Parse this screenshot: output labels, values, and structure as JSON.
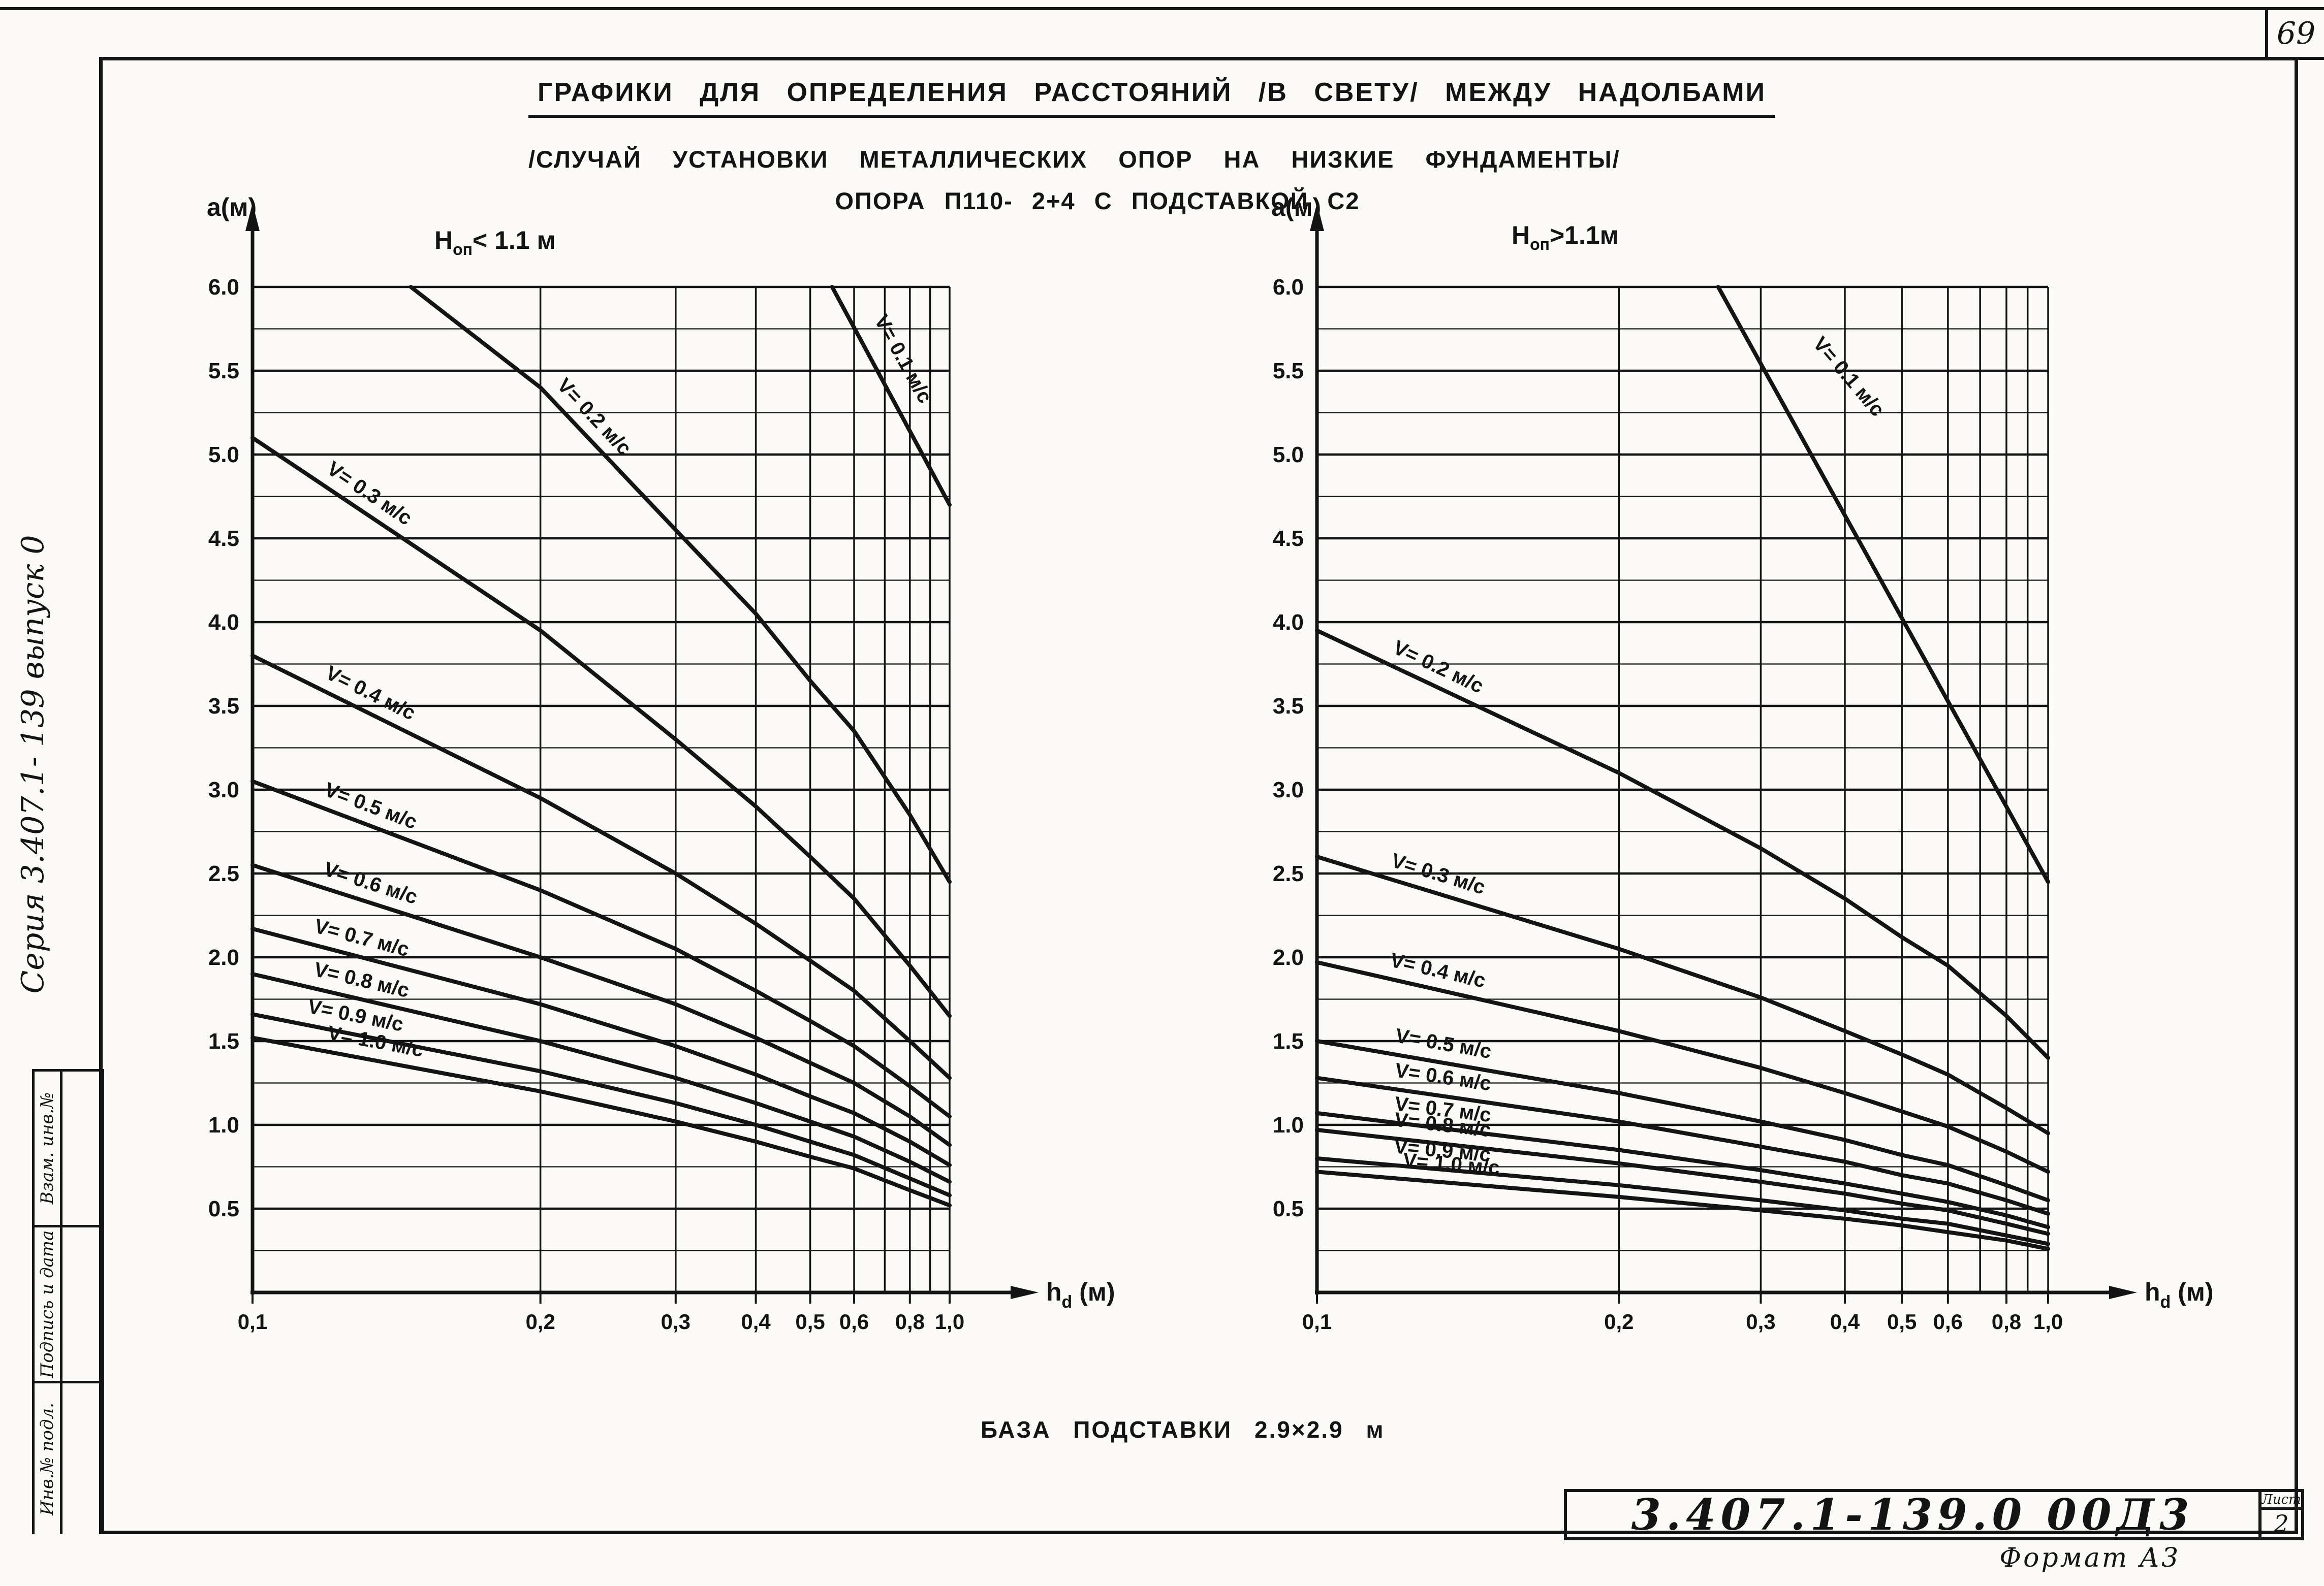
{
  "page": {
    "page_number": "69",
    "side_series_label": "Серия 3.407.1- 139 выпуск 0",
    "margin_boxes": [
      "Взам. инв.№",
      "Подпись и дата",
      "Инв.№ подл."
    ],
    "format_note": "Формат А3"
  },
  "title": {
    "line1": "ГРАФИКИ ДЛЯ ОПРЕДЕЛЕНИЯ РАССТОЯНИЙ /В СВЕТУ/ МЕЖДУ НАДОЛБАМИ",
    "line2": "/СЛУЧАЙ УСТАНОВКИ МЕТАЛЛИЧЕСКИХ ОПОР НА НИЗКИЕ ФУНДАМЕНТЫ/",
    "line3": "ОПОРА П110- 2+4 С ПОДСТАВКОЙ С2"
  },
  "note": "БАЗА ПОДСТАВКИ 2.9×2.9 м",
  "title_block": {
    "doc_number": "3.407.1-139.0  00Д3",
    "sheet_label": "Лист",
    "sheet_number": "2"
  },
  "chart_data": [
    {
      "type": "line",
      "title_parts": {
        "pre": "H",
        "sub": "оп",
        "post": "< 1.1 м"
      },
      "ylabel": "a(м)",
      "xlabel_parts": {
        "pre": "h",
        "sub": "d",
        "post": " (м)"
      },
      "xlim": [
        0.1,
        1.0
      ],
      "ylim": [
        0,
        6.0
      ],
      "x_scale": "hand-drawn compressed log",
      "grid": {
        "y_minor_step": 0.25,
        "y_label_step": 0.5,
        "x_gridlines": [
          0.2,
          0.3,
          0.4,
          0.5,
          0.6,
          0.7,
          0.8,
          0.9,
          1.0
        ]
      },
      "x_axis_fractions": [
        [
          0.1,
          0
        ],
        [
          0.2,
          0.413
        ],
        [
          0.3,
          0.607
        ],
        [
          0.4,
          0.722
        ],
        [
          0.5,
          0.8
        ],
        [
          0.6,
          0.863
        ],
        [
          0.7,
          0.907
        ],
        [
          0.8,
          0.943
        ],
        [
          0.9,
          0.972
        ],
        [
          1.0,
          1.0
        ]
      ],
      "x_ticks": [
        0.1,
        0.2,
        0.3,
        0.4,
        0.5,
        0.6,
        0.8,
        1.0
      ],
      "x_tick_labels": [
        "0,1",
        "0,2",
        "0,3",
        "0,4",
        "0,5",
        "0,6",
        "0,8",
        "1,0"
      ],
      "y_ticks": [
        0.5,
        1.0,
        1.5,
        2.0,
        2.5,
        3.0,
        3.5,
        4.0,
        4.5,
        5.0,
        5.5,
        6.0
      ],
      "y_tick_labels": [
        "0.5",
        "1.0",
        "1.5",
        "2.0",
        "2.5",
        "3.0",
        "3.5",
        "4.0",
        "4.5",
        "5.0",
        "5.5",
        "6.0"
      ],
      "series": [
        {
          "name": "V= 0.1 м/с",
          "label_x": 0.63,
          "points": [
            [
              0.55,
              6.0
            ],
            [
              1.0,
              4.7
            ]
          ]
        },
        {
          "name": "V= 0.2 м/с",
          "label_x": 0.205,
          "points": [
            [
              0.155,
              6.0
            ],
            [
              0.2,
              5.4
            ],
            [
              0.3,
              4.55
            ],
            [
              0.4,
              4.05
            ],
            [
              0.5,
              3.65
            ],
            [
              0.6,
              3.35
            ],
            [
              0.8,
              2.85
            ],
            [
              1.0,
              2.45
            ]
          ]
        },
        {
          "name": "V= 0.3 м/с",
          "label_x": 0.123,
          "points": [
            [
              0.1,
              5.1
            ],
            [
              0.2,
              3.95
            ],
            [
              0.3,
              3.3
            ],
            [
              0.4,
              2.9
            ],
            [
              0.5,
              2.6
            ],
            [
              0.6,
              2.35
            ],
            [
              0.8,
              1.95
            ],
            [
              1.0,
              1.65
            ]
          ]
        },
        {
          "name": "V= 0.4 м/с",
          "label_x": 0.123,
          "points": [
            [
              0.1,
              3.8
            ],
            [
              0.2,
              2.95
            ],
            [
              0.3,
              2.5
            ],
            [
              0.4,
              2.2
            ],
            [
              0.5,
              1.98
            ],
            [
              0.6,
              1.8
            ],
            [
              0.8,
              1.5
            ],
            [
              1.0,
              1.28
            ]
          ]
        },
        {
          "name": "V= 0.5 м/с",
          "label_x": 0.123,
          "points": [
            [
              0.1,
              3.05
            ],
            [
              0.2,
              2.4
            ],
            [
              0.3,
              2.05
            ],
            [
              0.4,
              1.8
            ],
            [
              0.5,
              1.62
            ],
            [
              0.6,
              1.47
            ],
            [
              0.8,
              1.23
            ],
            [
              1.0,
              1.05
            ]
          ]
        },
        {
          "name": "V= 0.6 м/с",
          "label_x": 0.123,
          "points": [
            [
              0.1,
              2.55
            ],
            [
              0.2,
              2.0
            ],
            [
              0.3,
              1.72
            ],
            [
              0.4,
              1.52
            ],
            [
              0.5,
              1.37
            ],
            [
              0.6,
              1.25
            ],
            [
              0.8,
              1.05
            ],
            [
              1.0,
              0.88
            ]
          ]
        },
        {
          "name": "V= 0.7 м/с",
          "label_x": 0.12,
          "points": [
            [
              0.1,
              2.17
            ],
            [
              0.2,
              1.72
            ],
            [
              0.3,
              1.47
            ],
            [
              0.4,
              1.3
            ],
            [
              0.5,
              1.17
            ],
            [
              0.6,
              1.07
            ],
            [
              0.8,
              0.9
            ],
            [
              1.0,
              0.76
            ]
          ]
        },
        {
          "name": "V= 0.8 м/с",
          "label_x": 0.12,
          "points": [
            [
              0.1,
              1.9
            ],
            [
              0.2,
              1.5
            ],
            [
              0.3,
              1.28
            ],
            [
              0.4,
              1.13
            ],
            [
              0.5,
              1.02
            ],
            [
              0.6,
              0.93
            ],
            [
              0.8,
              0.78
            ],
            [
              1.0,
              0.66
            ]
          ]
        },
        {
          "name": "V= 0.9 м/с",
          "label_x": 0.118,
          "points": [
            [
              0.1,
              1.66
            ],
            [
              0.2,
              1.32
            ],
            [
              0.3,
              1.13
            ],
            [
              0.4,
              1.0
            ],
            [
              0.5,
              0.9
            ],
            [
              0.6,
              0.82
            ],
            [
              0.8,
              0.68
            ],
            [
              1.0,
              0.58
            ]
          ]
        },
        {
          "name": "V= 1.0 м/с",
          "label_x": 0.125,
          "points": [
            [
              0.1,
              1.52
            ],
            [
              0.2,
              1.2
            ],
            [
              0.3,
              1.02
            ],
            [
              0.4,
              0.9
            ],
            [
              0.5,
              0.81
            ],
            [
              0.6,
              0.74
            ],
            [
              0.8,
              0.61
            ],
            [
              1.0,
              0.52
            ]
          ]
        }
      ]
    },
    {
      "type": "line",
      "title_parts": {
        "pre": "H",
        "sub": "оп",
        "post": ">1.1м"
      },
      "ylabel": "a(м)",
      "xlabel_parts": {
        "pre": "h",
        "sub": "d",
        "post": " (м)"
      },
      "xlim": [
        0.1,
        1.0
      ],
      "ylim": [
        0,
        6.0
      ],
      "x_scale": "hand-drawn compressed log",
      "grid": {
        "y_minor_step": 0.25,
        "y_label_step": 0.5,
        "x_gridlines": [
          0.2,
          0.3,
          0.4,
          0.5,
          0.6,
          0.7,
          0.8,
          0.9,
          1.0
        ]
      },
      "x_axis_fractions": [
        [
          0.1,
          0
        ],
        [
          0.2,
          0.413
        ],
        [
          0.3,
          0.607
        ],
        [
          0.4,
          0.722
        ],
        [
          0.5,
          0.8
        ],
        [
          0.6,
          0.863
        ],
        [
          0.7,
          0.907
        ],
        [
          0.8,
          0.943
        ],
        [
          0.9,
          0.972
        ],
        [
          1.0,
          1.0
        ]
      ],
      "x_ticks": [
        0.1,
        0.2,
        0.3,
        0.4,
        0.5,
        0.6,
        0.8,
        1.0
      ],
      "x_tick_labels": [
        "0,1",
        "0,2",
        "0,3",
        "0,4",
        "0,5",
        "0,6",
        "0,8",
        "1,0"
      ],
      "y_ticks": [
        0.5,
        1.0,
        1.5,
        2.0,
        2.5,
        3.0,
        3.5,
        4.0,
        4.5,
        5.0,
        5.5,
        6.0
      ],
      "y_tick_labels": [
        "0.5",
        "1.0",
        "1.5",
        "2.0",
        "2.5",
        "3.0",
        "3.5",
        "4.0",
        "4.5",
        "5.0",
        "5.5",
        "6.0"
      ],
      "series": [
        {
          "name": "V= 0.1 м/с",
          "label_x": 0.35,
          "points": [
            [
              0.27,
              6.0
            ],
            [
              1.0,
              2.45
            ]
          ]
        },
        {
          "name": "V= 0.2 м/с",
          "label_x": 0.123,
          "points": [
            [
              0.1,
              3.95
            ],
            [
              0.2,
              3.1
            ],
            [
              0.3,
              2.65
            ],
            [
              0.4,
              2.35
            ],
            [
              0.5,
              2.12
            ],
            [
              0.6,
              1.95
            ],
            [
              0.8,
              1.65
            ],
            [
              1.0,
              1.4
            ]
          ]
        },
        {
          "name": "V= 0.3 м/с",
          "label_x": 0.123,
          "points": [
            [
              0.1,
              2.6
            ],
            [
              0.2,
              2.05
            ],
            [
              0.3,
              1.76
            ],
            [
              0.4,
              1.56
            ],
            [
              0.5,
              1.42
            ],
            [
              0.6,
              1.3
            ],
            [
              0.8,
              1.1
            ],
            [
              1.0,
              0.95
            ]
          ]
        },
        {
          "name": "V= 0.4 м/с",
          "label_x": 0.123,
          "points": [
            [
              0.1,
              1.97
            ],
            [
              0.2,
              1.56
            ],
            [
              0.3,
              1.34
            ],
            [
              0.4,
              1.19
            ],
            [
              0.5,
              1.08
            ],
            [
              0.6,
              0.99
            ],
            [
              0.8,
              0.84
            ],
            [
              1.0,
              0.72
            ]
          ]
        },
        {
          "name": "V= 0.5 м/с",
          "label_x": 0.125,
          "points": [
            [
              0.1,
              1.5
            ],
            [
              0.2,
              1.19
            ],
            [
              0.3,
              1.02
            ],
            [
              0.4,
              0.91
            ],
            [
              0.5,
              0.82
            ],
            [
              0.6,
              0.76
            ],
            [
              0.8,
              0.64
            ],
            [
              1.0,
              0.55
            ]
          ]
        },
        {
          "name": "V= 0.6 м/с",
          "label_x": 0.125,
          "points": [
            [
              0.1,
              1.28
            ],
            [
              0.2,
              1.02
            ],
            [
              0.3,
              0.87
            ],
            [
              0.4,
              0.78
            ],
            [
              0.5,
              0.7
            ],
            [
              0.6,
              0.65
            ],
            [
              0.8,
              0.55
            ],
            [
              1.0,
              0.47
            ]
          ]
        },
        {
          "name": "V= 0.7 м/с",
          "label_x": 0.125,
          "points": [
            [
              0.1,
              1.07
            ],
            [
              0.2,
              0.85
            ],
            [
              0.3,
              0.73
            ],
            [
              0.4,
              0.65
            ],
            [
              0.5,
              0.59
            ],
            [
              0.6,
              0.54
            ],
            [
              0.8,
              0.46
            ],
            [
              1.0,
              0.39
            ]
          ]
        },
        {
          "name": "V= 0.8 м/с",
          "label_x": 0.125,
          "points": [
            [
              0.1,
              0.97
            ],
            [
              0.2,
              0.77
            ],
            [
              0.3,
              0.66
            ],
            [
              0.4,
              0.59
            ],
            [
              0.5,
              0.53
            ],
            [
              0.6,
              0.49
            ],
            [
              0.8,
              0.41
            ],
            [
              1.0,
              0.35
            ]
          ]
        },
        {
          "name": "V= 0.9 м/с",
          "label_x": 0.125,
          "points": [
            [
              0.1,
              0.8
            ],
            [
              0.2,
              0.64
            ],
            [
              0.3,
              0.55
            ],
            [
              0.4,
              0.49
            ],
            [
              0.5,
              0.44
            ],
            [
              0.6,
              0.41
            ],
            [
              0.8,
              0.34
            ],
            [
              1.0,
              0.29
            ]
          ]
        },
        {
          "name": "V= 1.0 м/с",
          "label_x": 0.128,
          "points": [
            [
              0.1,
              0.72
            ],
            [
              0.2,
              0.57
            ],
            [
              0.3,
              0.49
            ],
            [
              0.4,
              0.44
            ],
            [
              0.5,
              0.4
            ],
            [
              0.6,
              0.36
            ],
            [
              0.8,
              0.31
            ],
            [
              1.0,
              0.26
            ]
          ]
        }
      ]
    }
  ]
}
